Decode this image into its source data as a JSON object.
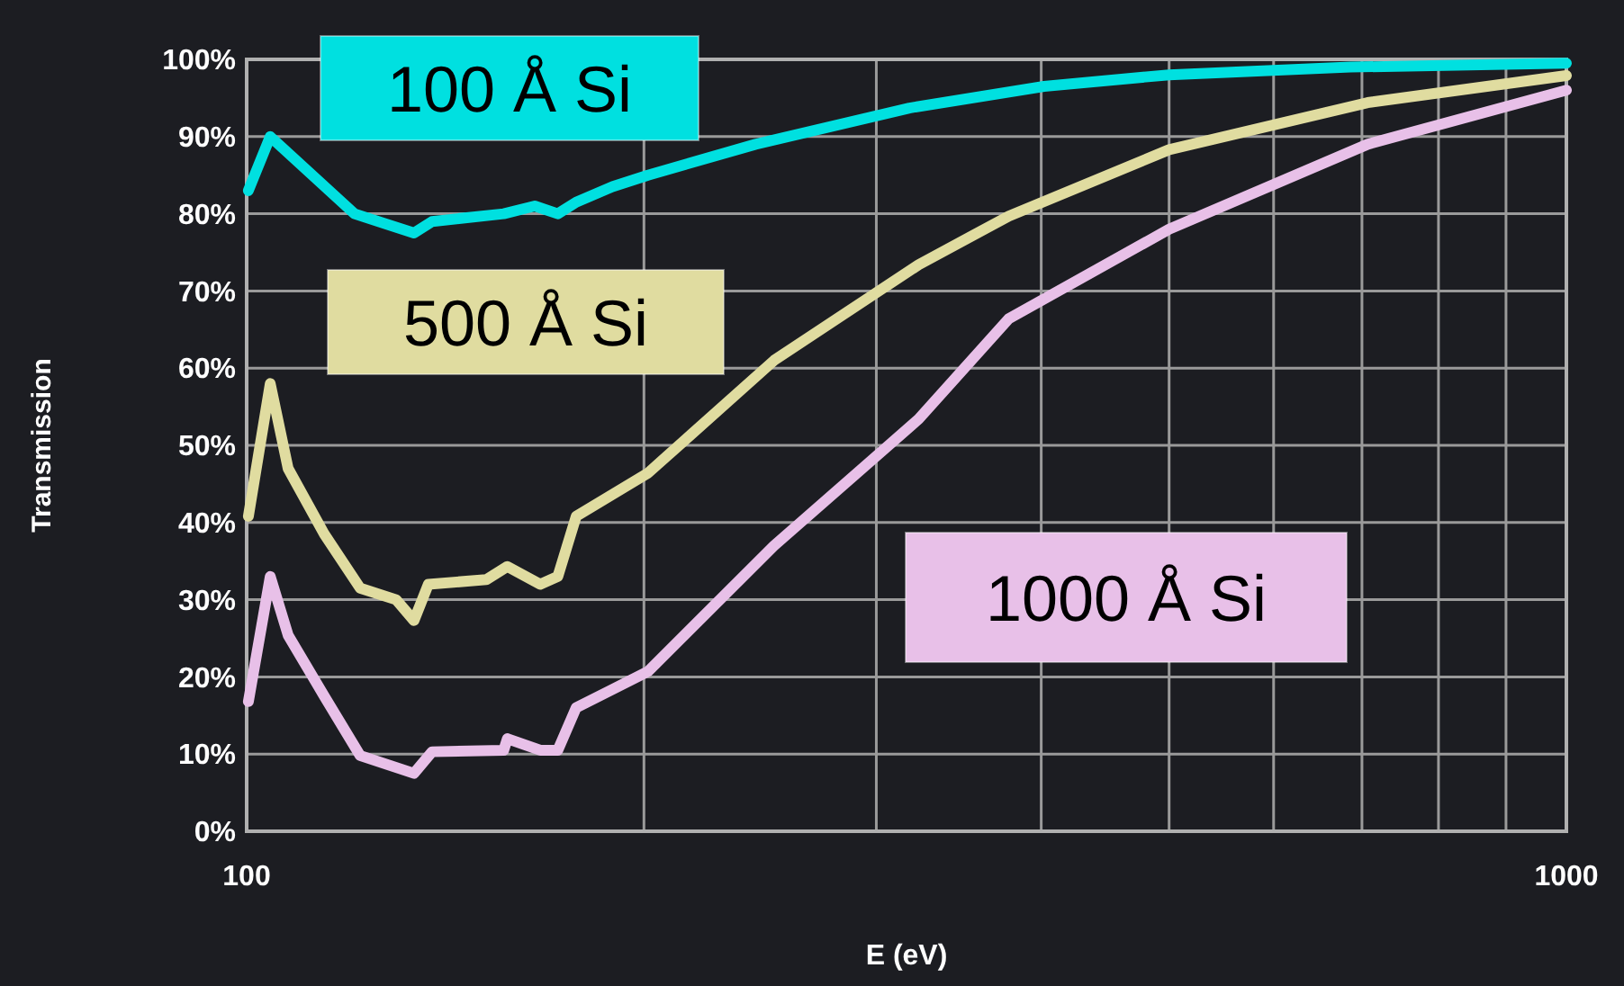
{
  "chart_data": {
    "type": "line",
    "xlabel": "E (eV)",
    "ylabel": "Transmission",
    "log": "x",
    "grid": true,
    "legend": false,
    "xlim": [
      100,
      1000
    ],
    "xticks": [
      100,
      {
        "value": 200,
        "label": null
      },
      {
        "value": 300,
        "label": null
      },
      {
        "value": 400,
        "label": null
      },
      {
        "value": 500,
        "label": null
      },
      {
        "value": 600,
        "label": null
      },
      {
        "value": 700,
        "label": null
      },
      {
        "value": 800,
        "label": null
      },
      {
        "value": 900,
        "label": null
      },
      1000
    ],
    "ylim": [
      0,
      100
    ],
    "yticks": [
      {
        "value": 0,
        "label": "0%"
      },
      {
        "value": 10,
        "label": "10%"
      },
      {
        "value": 20,
        "label": "20%"
      },
      {
        "value": 30,
        "label": "30%"
      },
      {
        "value": 40,
        "label": "40%"
      },
      {
        "value": 50,
        "label": "50%"
      },
      {
        "value": 60,
        "label": "60%"
      },
      {
        "value": 70,
        "label": "70%"
      },
      {
        "value": 80,
        "label": "80%"
      },
      {
        "value": 90,
        "label": "90%"
      },
      {
        "value": 100,
        "label": "100%"
      }
    ],
    "series": [
      {
        "name": "100 Å Si",
        "color": "#00e0e0",
        "x": [
          100.3,
          104.2,
          120.7,
          133.9,
          138.2,
          156.6,
          165.3,
          172.1,
          177.7,
          189.3,
          201.4,
          243,
          317.8,
          402,
          500,
          686,
          1000
        ],
        "values": [
          83,
          90,
          80,
          77.5,
          79,
          80,
          81,
          80,
          81.5,
          83.5,
          85,
          89,
          93.7,
          96.5,
          98,
          99,
          99.5
        ]
      },
      {
        "name": "500 Å Si",
        "color": "#e0dca0",
        "x": [
          100.3,
          104.2,
          107.5,
          114.5,
          121.9,
          129.8,
          133.9,
          137.3,
          151.9,
          157.6,
          166.9,
          172.1,
          177.7,
          201.4,
          251,
          323,
          378,
          500,
          707,
          1000
        ],
        "values": [
          40.8,
          58,
          47,
          38.5,
          31.5,
          30,
          27.3,
          32,
          32.6,
          34.3,
          32,
          33,
          40.8,
          46.4,
          61,
          73.4,
          79.7,
          88.3,
          94.4,
          97.9
        ]
      },
      {
        "name": "1000 Å Si",
        "color": "#e8c0e8",
        "x": [
          100.3,
          104.2,
          107.5,
          114.5,
          121.9,
          133.9,
          138.2,
          156.6,
          157.6,
          166.9,
          172.1,
          177.7,
          201.4,
          251,
          323,
          378,
          500,
          707,
          1000
        ],
        "values": [
          16.8,
          33,
          25.4,
          17.5,
          9.8,
          7.5,
          10.3,
          10.5,
          12,
          10.5,
          10.5,
          16,
          20.7,
          37,
          53.4,
          66.4,
          78,
          89,
          96
        ]
      }
    ]
  }
}
